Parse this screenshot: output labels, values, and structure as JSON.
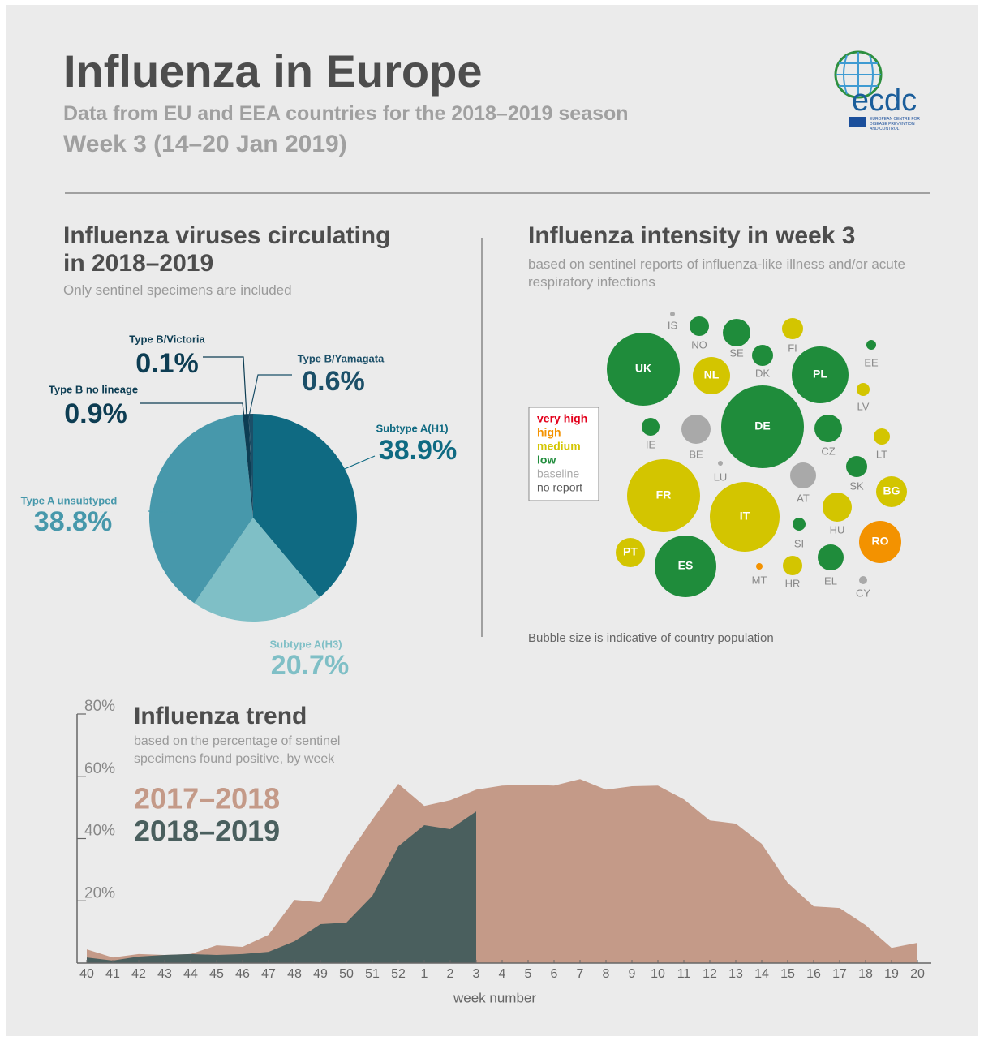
{
  "header": {
    "title": "Influenza in Europe",
    "subtitle": "Data from EU and EEA countries for the 2018–2019 season",
    "week": "Week 3 (14–20 Jan 2019)",
    "logo": "ecdc",
    "logo_caption": "EUROPEAN CENTRE FOR DISEASE PREVENTION AND CONTROL"
  },
  "chart_data": [
    {
      "type": "pie",
      "title": "Influenza viruses circulating in 2018–2019",
      "subtitle": "Only sentinel specimens are included",
      "categories": [
        "Subtype A(H1)",
        "Subtype A(H3)",
        "Type A unsubtyped",
        "Type B no lineage",
        "Type B/Victoria",
        "Type B/Yamagata"
      ],
      "values": [
        38.9,
        20.7,
        38.8,
        0.9,
        0.1,
        0.6
      ],
      "value_labels": [
        "38.9%",
        "20.7%",
        "38.8%",
        "0.9%",
        "0.1%",
        "0.6%"
      ],
      "colors": [
        "#0f6a82",
        "#7fbfc6",
        "#4798ab",
        "#0d3d53",
        "#0d3d53",
        "#1b4f68"
      ]
    },
    {
      "type": "bubble-map",
      "title": "Influenza intensity in week 3",
      "subtitle": "based on sentinel reports of influenza-like illness and/or acute respiratory infections",
      "levels": [
        {
          "name": "very high",
          "color": "#e3001b"
        },
        {
          "name": "high",
          "color": "#f39200"
        },
        {
          "name": "medium",
          "color": "#d3c500"
        },
        {
          "name": "low",
          "color": "#1f8c3b"
        },
        {
          "name": "baseline",
          "color": "#a9a9a9"
        },
        {
          "name": "no report",
          "color": "#5a5a5a"
        }
      ],
      "countries": [
        {
          "code": "IS",
          "level": "baseline"
        },
        {
          "code": "NO",
          "level": "low"
        },
        {
          "code": "SE",
          "level": "low"
        },
        {
          "code": "FI",
          "level": "medium"
        },
        {
          "code": "EE",
          "level": "low"
        },
        {
          "code": "UK",
          "level": "low"
        },
        {
          "code": "NL",
          "level": "medium"
        },
        {
          "code": "DK",
          "level": "low"
        },
        {
          "code": "PL",
          "level": "low"
        },
        {
          "code": "LV",
          "level": "medium"
        },
        {
          "code": "IE",
          "level": "low"
        },
        {
          "code": "BE",
          "level": "baseline"
        },
        {
          "code": "DE",
          "level": "low"
        },
        {
          "code": "CZ",
          "level": "low"
        },
        {
          "code": "LT",
          "level": "medium"
        },
        {
          "code": "LU",
          "level": "baseline"
        },
        {
          "code": "SK",
          "level": "low"
        },
        {
          "code": "AT",
          "level": "baseline"
        },
        {
          "code": "BG",
          "level": "medium"
        },
        {
          "code": "FR",
          "level": "medium"
        },
        {
          "code": "IT",
          "level": "medium"
        },
        {
          "code": "HU",
          "level": "medium"
        },
        {
          "code": "SI",
          "level": "low"
        },
        {
          "code": "RO",
          "level": "high"
        },
        {
          "code": "PT",
          "level": "medium"
        },
        {
          "code": "ES",
          "level": "low"
        },
        {
          "code": "MT",
          "level": "high"
        },
        {
          "code": "HR",
          "level": "medium"
        },
        {
          "code": "EL",
          "level": "low"
        },
        {
          "code": "CY",
          "level": "baseline"
        }
      ],
      "note": "Bubble size is indicative of country population"
    },
    {
      "type": "area",
      "title": "Influenza trend",
      "subtitle": "based on the percentage of sentinel specimens found positive, by week",
      "x_label": "week number",
      "categories": [
        "40",
        "41",
        "42",
        "43",
        "44",
        "45",
        "46",
        "47",
        "48",
        "49",
        "50",
        "51",
        "52",
        "1",
        "2",
        "3",
        "4",
        "5",
        "6",
        "7",
        "8",
        "9",
        "10",
        "11",
        "12",
        "13",
        "14",
        "15",
        "16",
        "17",
        "18",
        "19",
        "20"
      ],
      "series": [
        {
          "name": "2017–2018",
          "color": "#c49a88",
          "values": [
            4.4,
            1.8,
            2.9,
            2.6,
            2.9,
            5.7,
            5.2,
            9.1,
            20.3,
            19.5,
            33.9,
            46.1,
            57.6,
            50.5,
            52.3,
            55.7,
            57.0,
            57.3,
            57.0,
            59.1,
            55.7,
            56.8,
            57.0,
            52.6,
            45.8,
            44.8,
            38.3,
            25.8,
            18.2,
            17.7,
            12.2,
            4.9,
            6.5
          ]
        },
        {
          "name": "2018–2019",
          "color": "#4a5f5e",
          "values": [
            1.8,
            0.8,
            2.1,
            2.6,
            2.9,
            2.6,
            2.9,
            3.6,
            7.0,
            12.5,
            13.0,
            21.6,
            37.5,
            44.3,
            43.0,
            48.7,
            null,
            null,
            null,
            null,
            null,
            null,
            null,
            null,
            null,
            null,
            null,
            null,
            null,
            null,
            null,
            null,
            null
          ]
        }
      ],
      "ylim": [
        0,
        80
      ],
      "yticks": [
        {
          "value": 20,
          "label": "20%"
        },
        {
          "value": 40,
          "label": "40%"
        },
        {
          "value": 60,
          "label": "60%"
        },
        {
          "value": 80,
          "label": "80%"
        }
      ]
    }
  ]
}
